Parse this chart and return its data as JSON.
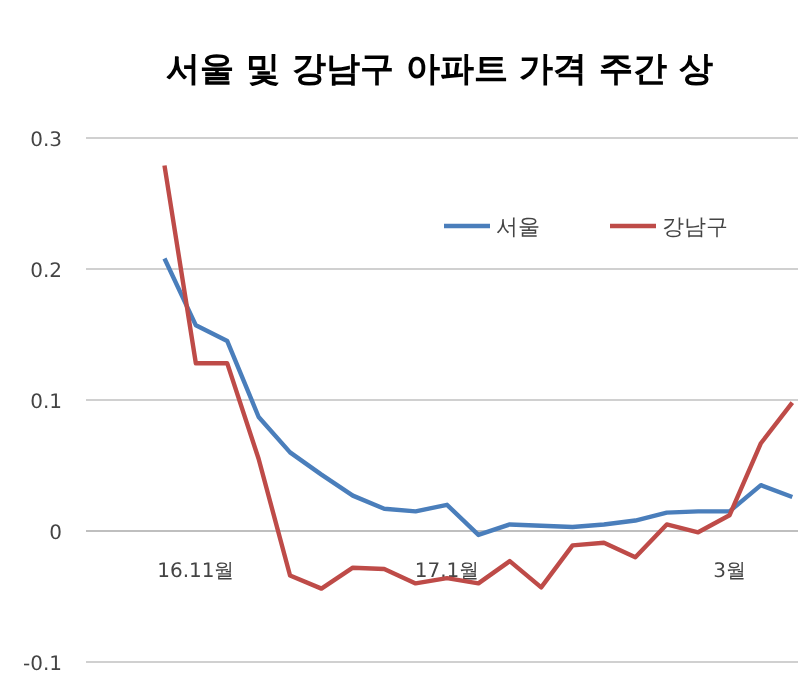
{
  "chart_data": {
    "type": "line",
    "title": "서울 및 강남구 아파트 가격 주간 상",
    "categories": [
      null,
      null,
      null,
      "16.11월",
      null,
      null,
      null,
      null,
      null,
      null,
      null,
      "17.1월",
      null,
      null,
      null,
      null,
      null,
      null,
      null,
      null,
      "3월",
      null,
      null
    ],
    "series": [
      {
        "name": "서울",
        "color": "#4a7ebb",
        "values": [
          null,
          null,
          0.208,
          0.157,
          0.145,
          0.087,
          0.06,
          0.043,
          0.027,
          0.017,
          0.015,
          0.02,
          -0.003,
          0.005,
          0.004,
          0.003,
          0.005,
          0.008,
          0.014,
          0.015,
          0.015,
          0.035,
          0.026
        ]
      },
      {
        "name": "강남구",
        "color": "#be4b48",
        "values": [
          null,
          null,
          0.279,
          0.128,
          0.128,
          0.055,
          -0.034,
          -0.044,
          -0.028,
          -0.029,
          -0.04,
          -0.036,
          -0.04,
          -0.023,
          -0.043,
          -0.011,
          -0.009,
          -0.02,
          0.005,
          -0.001,
          0.012,
          0.067,
          0.098
        ]
      }
    ],
    "ylim": [
      -0.1,
      0.3
    ],
    "yticks": [
      -0.1,
      0,
      0.1,
      0.2,
      0.3
    ],
    "grid": "y",
    "legend": "top right",
    "marker": "none",
    "line_style": "solid"
  }
}
